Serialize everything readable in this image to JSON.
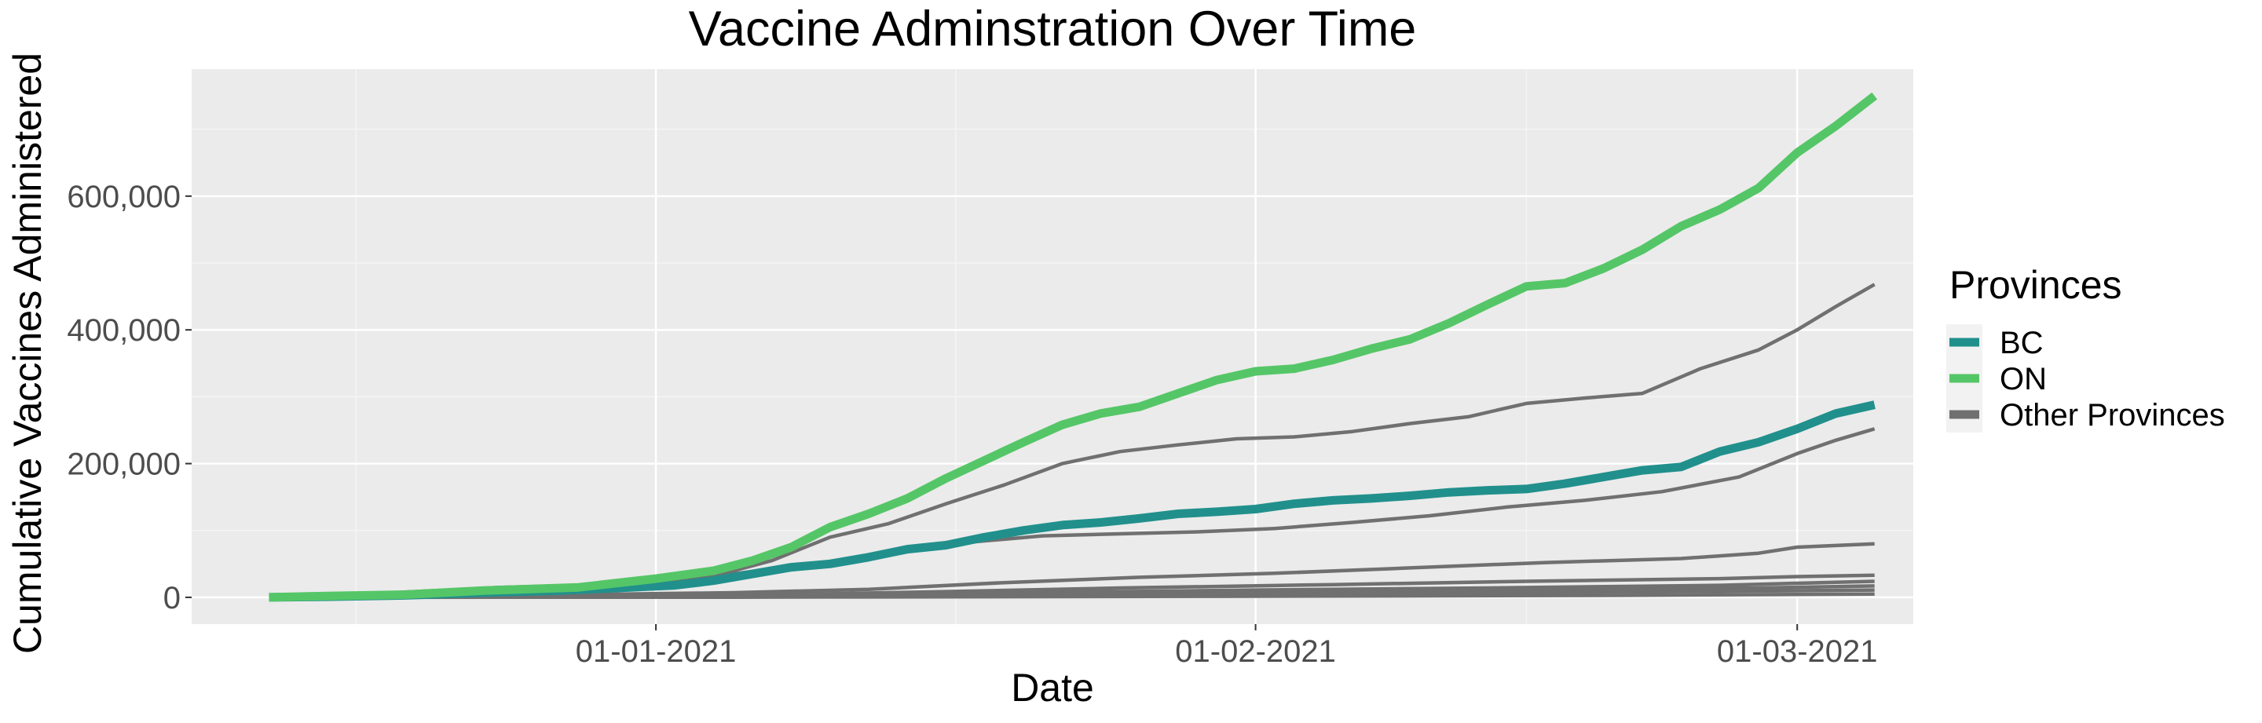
{
  "chart_data": {
    "type": "line",
    "title": "Vaccine Adminstration Over Time",
    "xlabel": "Date",
    "ylabel": "Cumulative Vaccines Administered",
    "x_tick_labels": [
      "01-01-2021",
      "01-02-2021",
      "01-03-2021"
    ],
    "x_tick_dates": [
      "2021-01-01",
      "2021-02-01",
      "2021-03-01"
    ],
    "y_tick_labels": [
      "0",
      "200,000",
      "400,000",
      "600,000"
    ],
    "y_tick_values": [
      0,
      200000,
      400000,
      600000
    ],
    "xlim": [
      "2020-12-08",
      "2021-03-07"
    ],
    "ylim": [
      -40000,
      790000
    ],
    "grid": true,
    "legend": {
      "title": "Provinces",
      "placement": "right",
      "entries": [
        {
          "label": "BC",
          "color": "#21908c"
        },
        {
          "label": "ON",
          "color": "#55c667"
        },
        {
          "label": "Other Provinces",
          "color": "#707070"
        }
      ]
    },
    "colors": {
      "background": "#ebebeb",
      "grid_major": "#ffffff",
      "grid_minor": "#f5f5f5"
    },
    "series": [
      {
        "name": "ON",
        "group": "ON",
        "x": [
          "2020-12-12",
          "2020-12-15",
          "2020-12-19",
          "2020-12-23",
          "2020-12-28",
          "2021-01-01",
          "2021-01-04",
          "2021-01-06",
          "2021-01-08",
          "2021-01-10",
          "2021-01-12",
          "2021-01-14",
          "2021-01-16",
          "2021-01-18",
          "2021-01-20",
          "2021-01-22",
          "2021-01-24",
          "2021-01-26",
          "2021-01-28",
          "2021-01-30",
          "2021-02-01",
          "2021-02-03",
          "2021-02-05",
          "2021-02-07",
          "2021-02-09",
          "2021-02-11",
          "2021-02-13",
          "2021-02-15",
          "2021-02-17",
          "2021-02-19",
          "2021-02-21",
          "2021-02-23",
          "2021-02-25",
          "2021-02-27",
          "2021-03-01",
          "2021-03-03",
          "2021-03-05"
        ],
        "y": [
          0,
          2000,
          4000,
          10000,
          15000,
          28000,
          40000,
          55000,
          75000,
          105000,
          125000,
          148000,
          178000,
          205000,
          232000,
          258000,
          275000,
          285000,
          305000,
          325000,
          338000,
          342000,
          355000,
          372000,
          386000,
          410000,
          438000,
          465000,
          470000,
          492000,
          520000,
          555000,
          580000,
          612000,
          665000,
          705000,
          750000
        ]
      },
      {
        "name": "BC",
        "group": "BC",
        "x": [
          "2020-12-12",
          "2020-12-15",
          "2020-12-19",
          "2020-12-23",
          "2020-12-27",
          "2020-12-30",
          "2021-01-02",
          "2021-01-04",
          "2021-01-06",
          "2021-01-08",
          "2021-01-10",
          "2021-01-12",
          "2021-01-14",
          "2021-01-16",
          "2021-01-18",
          "2021-01-20",
          "2021-01-22",
          "2021-01-24",
          "2021-01-26",
          "2021-01-28",
          "2021-01-30",
          "2021-02-01",
          "2021-02-03",
          "2021-02-05",
          "2021-02-07",
          "2021-02-09",
          "2021-02-11",
          "2021-02-13",
          "2021-02-15",
          "2021-02-17",
          "2021-02-19",
          "2021-02-21",
          "2021-02-23",
          "2021-02-25",
          "2021-02-27",
          "2021-03-01",
          "2021-03-03",
          "2021-03-05"
        ],
        "y": [
          0,
          1000,
          3000,
          7000,
          10000,
          14000,
          18000,
          25000,
          35000,
          45000,
          50000,
          60000,
          72000,
          78000,
          90000,
          100000,
          108000,
          112000,
          118000,
          125000,
          128000,
          132000,
          140000,
          145000,
          148000,
          152000,
          157000,
          160000,
          162000,
          170000,
          180000,
          190000,
          195000,
          218000,
          232000,
          252000,
          275000,
          288000
        ]
      },
      {
        "name": "",
        "group": "Other Provinces",
        "x": [
          "2020-12-12",
          "2020-12-16",
          "2020-12-20",
          "2020-12-24",
          "2020-12-28",
          "2021-01-01",
          "2021-01-04",
          "2021-01-07",
          "2021-01-10",
          "2021-01-13",
          "2021-01-16",
          "2021-01-19",
          "2021-01-22",
          "2021-01-25",
          "2021-01-28",
          "2021-01-31",
          "2021-02-03",
          "2021-02-06",
          "2021-02-09",
          "2021-02-12",
          "2021-02-15",
          "2021-02-18",
          "2021-02-21",
          "2021-02-24",
          "2021-02-27",
          "2021-03-01",
          "2021-03-03",
          "2021-03-05"
        ],
        "y": [
          0,
          3000,
          9000,
          15000,
          18000,
          22000,
          32000,
          55000,
          90000,
          110000,
          140000,
          168000,
          200000,
          218000,
          228000,
          237000,
          240000,
          248000,
          260000,
          270000,
          290000,
          298000,
          305000,
          342000,
          370000,
          400000,
          435000,
          468000
        ]
      },
      {
        "name": "",
        "group": "Other Provinces",
        "x": [
          "2020-12-12",
          "2020-12-17",
          "2020-12-22",
          "2020-12-27",
          "2021-01-01",
          "2021-01-05",
          "2021-01-09",
          "2021-01-13",
          "2021-01-17",
          "2021-01-21",
          "2021-01-25",
          "2021-01-29",
          "2021-02-02",
          "2021-02-06",
          "2021-02-10",
          "2021-02-14",
          "2021-02-18",
          "2021-02-22",
          "2021-02-26",
          "2021-03-01",
          "2021-03-03",
          "2021-03-05"
        ],
        "y": [
          0,
          5000,
          12000,
          15000,
          20000,
          35000,
          50000,
          65000,
          82000,
          92000,
          95000,
          98000,
          103000,
          112000,
          122000,
          135000,
          145000,
          158000,
          180000,
          215000,
          235000,
          252000
        ]
      },
      {
        "name": "",
        "group": "Other Provinces",
        "x": [
          "2020-12-12",
          "2020-12-20",
          "2020-12-28",
          "2021-01-05",
          "2021-01-12",
          "2021-01-19",
          "2021-01-26",
          "2021-02-02",
          "2021-02-09",
          "2021-02-16",
          "2021-02-23",
          "2021-02-27",
          "2021-03-01",
          "2021-03-05"
        ],
        "y": [
          0,
          2000,
          4000,
          7000,
          12000,
          22000,
          30000,
          36000,
          44000,
          52000,
          58000,
          66000,
          75000,
          80000
        ]
      },
      {
        "name": "",
        "group": "Other Provinces",
        "x": [
          "2020-12-12",
          "2020-12-24",
          "2021-01-05",
          "2021-01-15",
          "2021-01-25",
          "2021-02-05",
          "2021-02-15",
          "2021-02-25",
          "2021-03-01",
          "2021-03-05"
        ],
        "y": [
          0,
          1000,
          3000,
          8000,
          14000,
          19000,
          24000,
          28000,
          31000,
          33000
        ]
      },
      {
        "name": "",
        "group": "Other Provinces",
        "x": [
          "2020-12-12",
          "2020-12-26",
          "2021-01-08",
          "2021-01-20",
          "2021-02-01",
          "2021-02-13",
          "2021-02-25",
          "2021-03-01",
          "2021-03-05"
        ],
        "y": [
          0,
          1000,
          3000,
          7000,
          11000,
          14000,
          18000,
          21000,
          24000
        ]
      },
      {
        "name": "",
        "group": "Other Provinces",
        "x": [
          "2020-12-12",
          "2020-12-28",
          "2021-01-10",
          "2021-01-22",
          "2021-02-03",
          "2021-02-15",
          "2021-02-27",
          "2021-03-05"
        ],
        "y": [
          0,
          500,
          2000,
          5000,
          8000,
          11000,
          14000,
          17000
        ]
      },
      {
        "name": "",
        "group": "Other Provinces",
        "x": [
          "2020-12-12",
          "2021-01-01",
          "2021-01-20",
          "2021-02-08",
          "2021-02-25",
          "2021-03-05"
        ],
        "y": [
          0,
          500,
          3000,
          6000,
          9000,
          11000
        ]
      },
      {
        "name": "",
        "group": "Other Provinces",
        "x": [
          "2020-12-12",
          "2021-01-05",
          "2021-01-30",
          "2021-02-20",
          "2021-03-05"
        ],
        "y": [
          0,
          300,
          1500,
          3000,
          5000
        ]
      }
    ]
  }
}
